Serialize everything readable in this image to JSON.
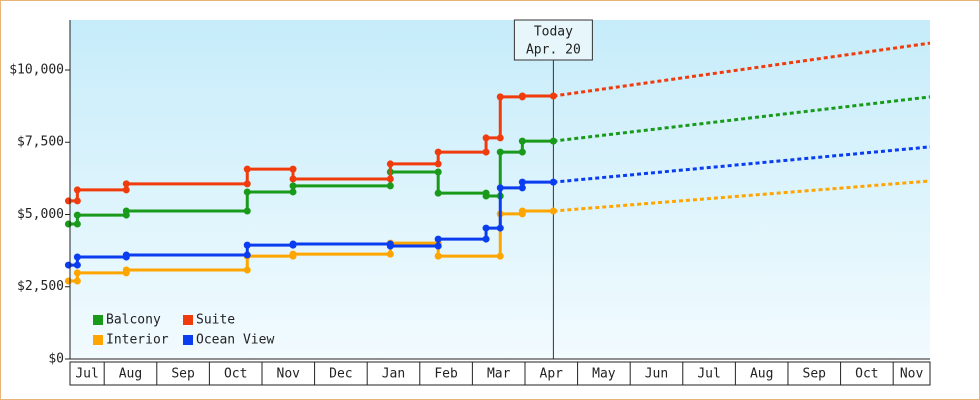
{
  "chart_data": {
    "type": "step-line",
    "xlim": [
      0.35,
      16.7
    ],
    "ylim": [
      0,
      11730
    ],
    "xticks": [
      {
        "value": 0.5,
        "label": "Jul"
      },
      {
        "value": 1.5,
        "label": "Aug"
      },
      {
        "value": 2.5,
        "label": "Sep"
      },
      {
        "value": 3.5,
        "label": "Oct"
      },
      {
        "value": 4.5,
        "label": "Nov"
      },
      {
        "value": 5.5,
        "label": "Dec"
      },
      {
        "value": 6.5,
        "label": "Jan"
      },
      {
        "value": 7.5,
        "label": "Feb"
      },
      {
        "value": 8.5,
        "label": "Mar"
      },
      {
        "value": 9.5,
        "label": "Apr"
      },
      {
        "value": 10.5,
        "label": "May"
      },
      {
        "value": 11.5,
        "label": "Jun"
      },
      {
        "value": 12.5,
        "label": "Jul"
      },
      {
        "value": 13.5,
        "label": "Aug"
      },
      {
        "value": 14.5,
        "label": "Sep"
      },
      {
        "value": 15.5,
        "label": "Oct"
      },
      {
        "value": 16.5,
        "label": "Nov"
      }
    ],
    "yticks": [
      {
        "value": 0,
        "label": "$0"
      },
      {
        "value": 2500,
        "label": "$2,500"
      },
      {
        "value": 5000,
        "label": "$5,000"
      },
      {
        "value": 7500,
        "label": "$7,500"
      },
      {
        "value": 10000,
        "label": "$10,000"
      }
    ],
    "annotation": {
      "x": 9.54,
      "lines": [
        "Today",
        "Apr. 20"
      ]
    },
    "series": [
      {
        "name": "Balcony",
        "color": "#1a9a1a",
        "x": [
          0.32,
          0.49,
          0.49,
          1.42,
          1.42,
          3.72,
          3.72,
          4.59,
          4.59,
          6.44,
          6.44,
          7.35,
          7.35,
          8.26,
          8.26,
          8.53,
          8.53,
          8.95,
          8.95,
          9.54
        ],
        "values": [
          4670,
          4670,
          4980,
          4980,
          5120,
          5120,
          5780,
          5780,
          5990,
          5990,
          6470,
          6470,
          5740,
          5740,
          5640,
          5640,
          7160,
          7160,
          7540,
          7540
        ],
        "forecast_x": [
          9.54,
          16.7
        ],
        "forecast_values": [
          7540,
          9070
        ]
      },
      {
        "name": "Suite",
        "color": "#f03c0c",
        "x": [
          0.32,
          0.49,
          0.49,
          1.42,
          1.42,
          3.72,
          3.72,
          4.59,
          4.59,
          6.44,
          6.44,
          7.35,
          7.35,
          8.26,
          8.26,
          8.53,
          8.53,
          8.95,
          8.95,
          9.54
        ],
        "values": [
          5470,
          5470,
          5850,
          5850,
          6060,
          6060,
          6570,
          6570,
          6230,
          6230,
          6750,
          6750,
          7160,
          7160,
          7650,
          7650,
          9070,
          9070,
          9100,
          9100
        ],
        "forecast_x": [
          9.54,
          16.7
        ],
        "forecast_values": [
          9100,
          10930
        ]
      },
      {
        "name": "Interior",
        "color": "#ffa500",
        "x": [
          0.32,
          0.49,
          0.49,
          1.42,
          1.42,
          3.72,
          3.72,
          4.59,
          4.59,
          6.44,
          6.44,
          7.35,
          7.35,
          8.53,
          8.53,
          8.95,
          8.95,
          9.54
        ],
        "values": [
          2700,
          2700,
          2980,
          2980,
          3080,
          3080,
          3560,
          3560,
          3630,
          3630,
          4010,
          4010,
          3560,
          3560,
          5020,
          5020,
          5120,
          5120
        ],
        "forecast_x": [
          9.54,
          16.7
        ],
        "forecast_values": [
          5120,
          6160
        ]
      },
      {
        "name": "Ocean View",
        "color": "#0a3cf0",
        "x": [
          0.32,
          0.49,
          0.49,
          1.42,
          1.42,
          3.72,
          3.72,
          4.59,
          4.59,
          6.44,
          6.44,
          7.35,
          7.35,
          8.26,
          8.26,
          8.53,
          8.53,
          8.95,
          8.95,
          9.54
        ],
        "values": [
          3250,
          3250,
          3530,
          3530,
          3600,
          3600,
          3940,
          3940,
          3980,
          3980,
          3910,
          3910,
          4150,
          4150,
          4530,
          4530,
          5920,
          5920,
          6120,
          6120
        ],
        "forecast_x": [
          9.54,
          16.7
        ],
        "forecast_values": [
          6120,
          7340
        ]
      }
    ]
  }
}
